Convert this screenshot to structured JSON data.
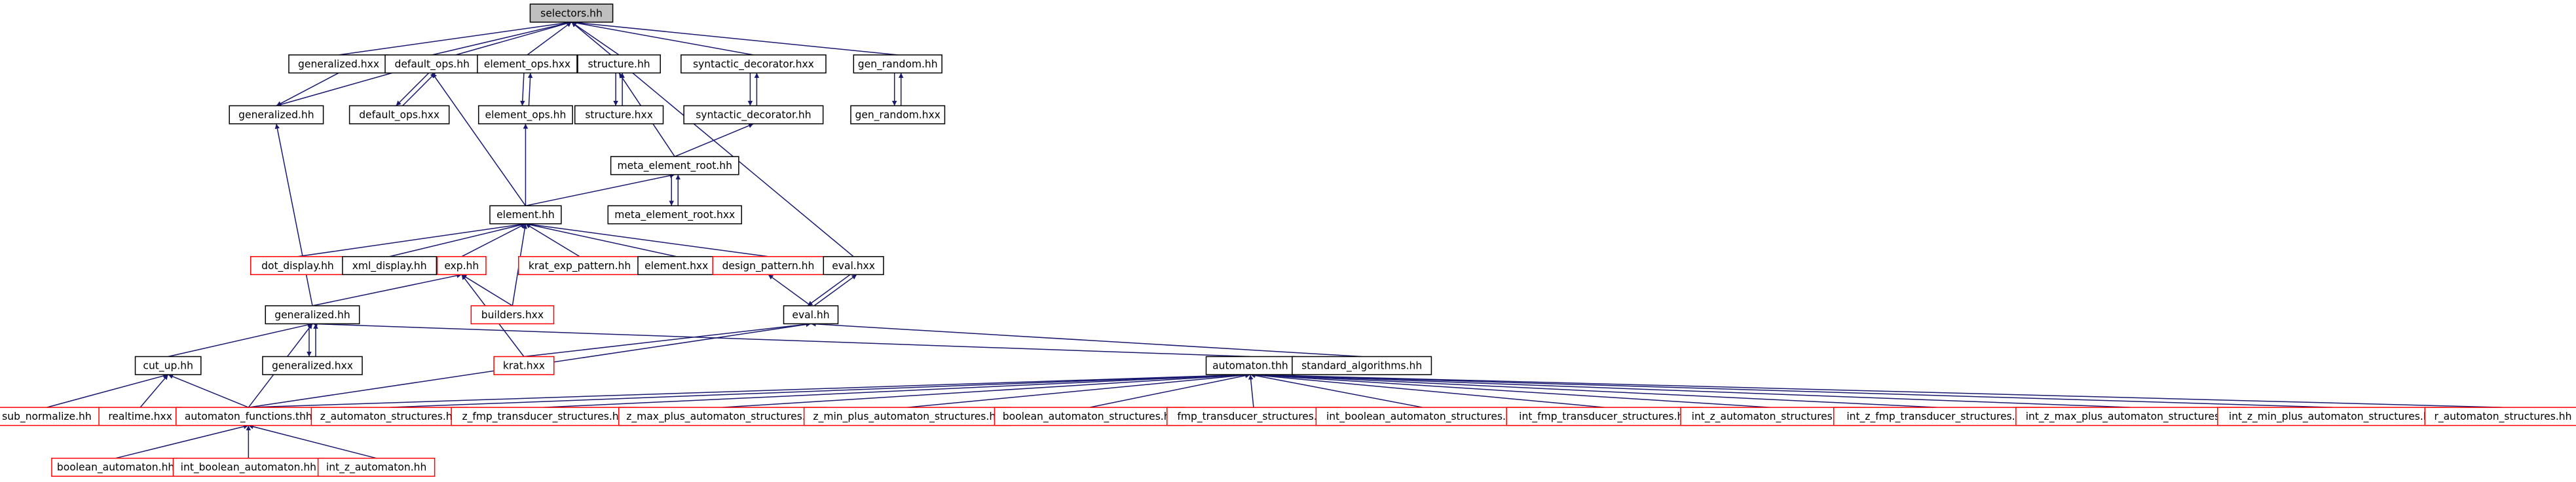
{
  "nodes": [
    {
      "label": "selectors.hh"
    },
    {
      "label": "generalized.hxx"
    },
    {
      "label": "default_ops.hh"
    },
    {
      "label": "element_ops.hxx"
    },
    {
      "label": "structure.hh"
    },
    {
      "label": "syntactic_decorator.hxx"
    },
    {
      "label": "gen_random.hh"
    },
    {
      "label": "generalized.hh"
    },
    {
      "label": "default_ops.hxx"
    },
    {
      "label": "element_ops.hh"
    },
    {
      "label": "structure.hxx"
    },
    {
      "label": "syntactic_decorator.hh"
    },
    {
      "label": "gen_random.hxx"
    },
    {
      "label": "meta_element_root.hh"
    },
    {
      "label": "element.hh"
    },
    {
      "label": "meta_element_root.hxx"
    },
    {
      "label": "dot_display.hh"
    },
    {
      "label": "xml_display.hh"
    },
    {
      "label": "exp.hh"
    },
    {
      "label": "krat_exp_pattern.hh"
    },
    {
      "label": "element.hxx"
    },
    {
      "label": "design_pattern.hh"
    },
    {
      "label": "eval.hxx"
    },
    {
      "label": "generalized.hh"
    },
    {
      "label": "builders.hxx"
    },
    {
      "label": "eval.hh"
    },
    {
      "label": "cut_up.hh"
    },
    {
      "label": "generalized.hxx"
    },
    {
      "label": "krat.hxx"
    },
    {
      "label": "automaton.thh"
    },
    {
      "label": "standard_algorithms.hh"
    },
    {
      "label": "sub_normalize.hh"
    },
    {
      "label": "realtime.hxx"
    },
    {
      "label": "automaton_functions.thh"
    },
    {
      "label": "z_automaton_structures.hh"
    },
    {
      "label": "z_fmp_transducer_structures.hh"
    },
    {
      "label": "z_max_plus_automaton_structures.hh"
    },
    {
      "label": "z_min_plus_automaton_structures.hh"
    },
    {
      "label": "boolean_automaton_structures.hh"
    },
    {
      "label": "fmp_transducer_structures.hh"
    },
    {
      "label": "int_boolean_automaton_structures.hh"
    },
    {
      "label": "int_fmp_transducer_structures.hh"
    },
    {
      "label": "int_z_automaton_structures.hh"
    },
    {
      "label": "int_z_fmp_transducer_structures.hh"
    },
    {
      "label": "int_z_max_plus_automaton_structures.hh"
    },
    {
      "label": "int_z_min_plus_automaton_structures.hh"
    },
    {
      "label": "r_automaton_structures.hh"
    },
    {
      "label": "boolean_automaton.hh"
    },
    {
      "label": "int_boolean_automaton.hh"
    },
    {
      "label": "int_z_automaton.hh"
    }
  ]
}
